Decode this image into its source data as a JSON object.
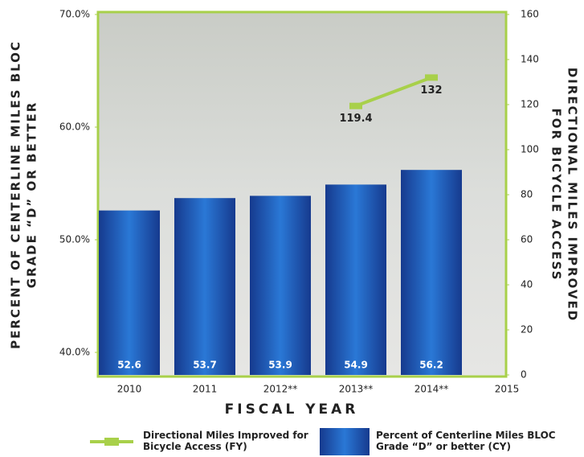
{
  "chart_data": {
    "type": "bar-line",
    "categories": [
      "2010",
      "2011",
      "2012**",
      "2013**",
      "2014**",
      "2015"
    ],
    "xlabel": "FISCAL YEAR",
    "ylabel": [
      "PERCENT OF CENTERLINE MILES BLOC",
      "GRADE “D” OR BETTER"
    ],
    "y2label": [
      "DIRECTIONAL MILES IMPROVED",
      "FOR BICYCLE ACCESS"
    ],
    "ylim": [
      38,
      70
    ],
    "yticks": [
      {
        "value": 40,
        "label": "40.0%"
      },
      {
        "value": 50,
        "label": "50.0%"
      },
      {
        "value": 60,
        "label": "60.0%"
      },
      {
        "value": 70,
        "label": "70.0%"
      }
    ],
    "y2lim": [
      0,
      160
    ],
    "y2ticks": [
      0,
      20,
      40,
      60,
      80,
      100,
      120,
      140,
      160
    ],
    "series": [
      {
        "name": "Directional Miles Improved for Bicycle Access (FY)",
        "type": "line",
        "axis": "y2",
        "color": "#a8d04a",
        "values": [
          null,
          null,
          null,
          119.4,
          132.0,
          null
        ]
      },
      {
        "name": "Percent of Centerline Miles BLOC Grade “D” or better (CY)",
        "type": "bar",
        "color": "#2a78d6",
        "values": [
          52.6,
          53.7,
          53.9,
          54.9,
          56.2,
          null
        ]
      }
    ]
  }
}
